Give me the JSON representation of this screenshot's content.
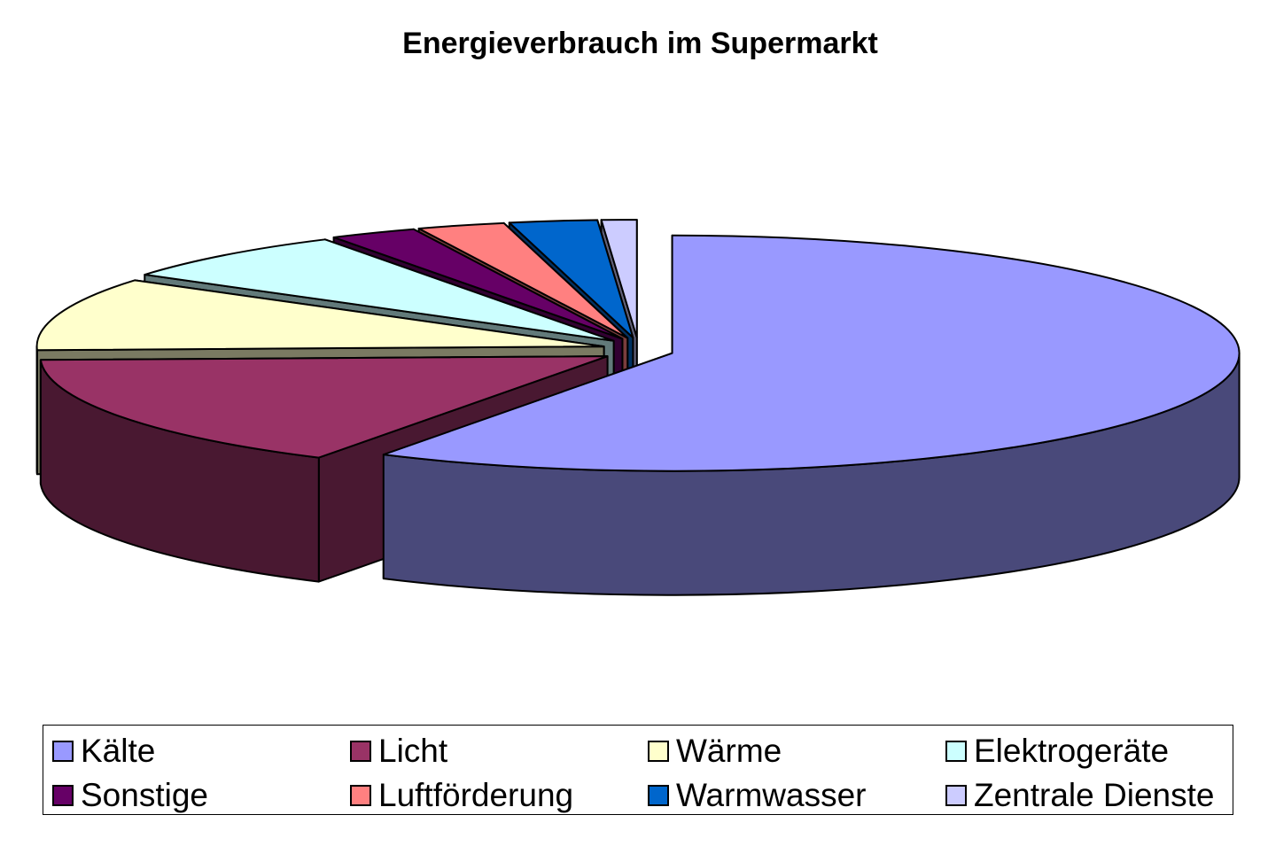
{
  "chart_data": {
    "type": "pie",
    "title": "Energieverbrauch im Supermarkt",
    "style": "3d-exploded",
    "legend_position": "bottom",
    "slices": [
      {
        "name": "Kälte",
        "value": 58.5,
        "color": "#9999ff"
      },
      {
        "name": "Licht",
        "value": 16.0,
        "color": "#993366"
      },
      {
        "name": "Wärme",
        "value": 10.0,
        "color": "#ffffcc"
      },
      {
        "name": "Elektrogeräte",
        "value": 7.0,
        "color": "#ccffff"
      },
      {
        "name": "Sonstige",
        "value": 2.5,
        "color": "#660066"
      },
      {
        "name": "Luftförderung",
        "value": 2.5,
        "color": "#ff8080"
      },
      {
        "name": "Warmwasser",
        "value": 2.5,
        "color": "#0066cc"
      },
      {
        "name": "Zentrale Dienste",
        "value": 1.0,
        "color": "#ccccff"
      }
    ]
  }
}
